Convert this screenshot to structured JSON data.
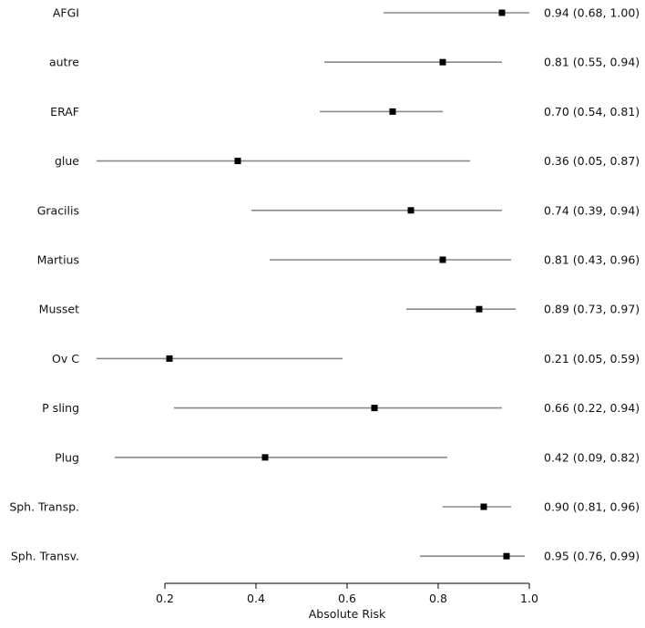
{
  "chart_data": {
    "type": "forest",
    "xlabel": "Absolute Risk",
    "xlim": [
      0.05,
      1.0
    ],
    "xticks": [
      "0.2",
      "0.4",
      "0.6",
      "0.8",
      "1.0"
    ],
    "xtick_values": [
      0.2,
      0.4,
      0.6,
      0.8,
      1.0
    ],
    "rows": [
      {
        "label": "AFGI",
        "estimate": 0.94,
        "lower": 0.68,
        "upper": 1.0,
        "text": "0.94 (0.68, 1.00)"
      },
      {
        "label": "autre",
        "estimate": 0.81,
        "lower": 0.55,
        "upper": 0.94,
        "text": "0.81 (0.55, 0.94)"
      },
      {
        "label": "ERAF",
        "estimate": 0.7,
        "lower": 0.54,
        "upper": 0.81,
        "text": "0.70 (0.54, 0.81)"
      },
      {
        "label": "glue",
        "estimate": 0.36,
        "lower": 0.05,
        "upper": 0.87,
        "text": "0.36 (0.05, 0.87)"
      },
      {
        "label": "Gracilis",
        "estimate": 0.74,
        "lower": 0.39,
        "upper": 0.94,
        "text": "0.74 (0.39, 0.94)"
      },
      {
        "label": "Martius",
        "estimate": 0.81,
        "lower": 0.43,
        "upper": 0.96,
        "text": "0.81 (0.43, 0.96)"
      },
      {
        "label": "Musset",
        "estimate": 0.89,
        "lower": 0.73,
        "upper": 0.97,
        "text": "0.89 (0.73, 0.97)"
      },
      {
        "label": "Ov C",
        "estimate": 0.21,
        "lower": 0.05,
        "upper": 0.59,
        "text": "0.21 (0.05, 0.59)"
      },
      {
        "label": "P sling",
        "estimate": 0.66,
        "lower": 0.22,
        "upper": 0.94,
        "text": "0.66 (0.22, 0.94)"
      },
      {
        "label": "Plug",
        "estimate": 0.42,
        "lower": 0.09,
        "upper": 0.82,
        "text": "0.42 (0.09, 0.82)"
      },
      {
        "label": "Sph. Transp.",
        "estimate": 0.9,
        "lower": 0.81,
        "upper": 0.96,
        "text": "0.90 (0.81, 0.96)"
      },
      {
        "label": "Sph. Transv.",
        "estimate": 0.95,
        "lower": 0.76,
        "upper": 0.99,
        "text": "0.95 (0.76, 0.99)"
      }
    ],
    "colors": {
      "ci_line": "#8a8a8a",
      "marker": "#000000",
      "axis": "#000000",
      "text": "#111111"
    }
  }
}
